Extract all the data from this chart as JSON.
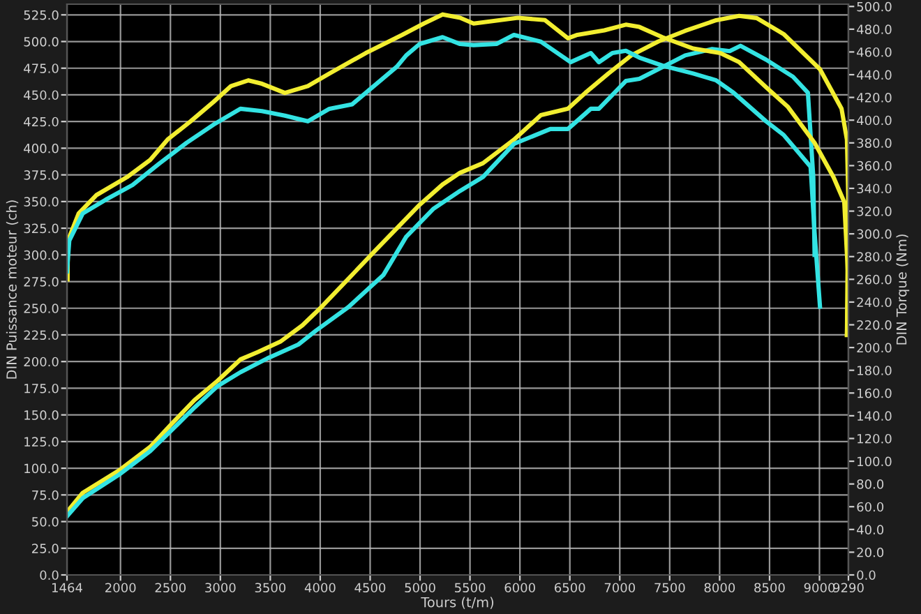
{
  "chart_data": {
    "type": "line",
    "xlabel": "Tours (t/m)",
    "ylabel": "DIN Puissance moteur (ch)",
    "y2label": "DIN Torque (Nm)",
    "xlim": [
      1464,
      9290
    ],
    "ylim": [
      0,
      535
    ],
    "y2lim": [
      0,
      502
    ],
    "grid": true,
    "legend": false,
    "marker": "none",
    "line_style": "solid",
    "xticks": [
      1464,
      2000,
      2500,
      3000,
      3500,
      4000,
      4500,
      5000,
      5500,
      6000,
      6500,
      7000,
      7500,
      8000,
      8500,
      9000,
      9290
    ],
    "yticks": [
      {
        "value": 0,
        "label": "0.0"
      },
      {
        "value": 25,
        "label": "25.0"
      },
      {
        "value": 50,
        "label": "50.0"
      },
      {
        "value": 75,
        "label": "75.0"
      },
      {
        "value": 100,
        "label": "100.0"
      },
      {
        "value": 125,
        "label": "125.0"
      },
      {
        "value": 150,
        "label": "150.0"
      },
      {
        "value": 175,
        "label": "175.0"
      },
      {
        "value": 200,
        "label": "200.0"
      },
      {
        "value": 225,
        "label": "225.0"
      },
      {
        "value": 250,
        "label": "250.0"
      },
      {
        "value": 275,
        "label": "275.0"
      },
      {
        "value": 300,
        "label": "300.0"
      },
      {
        "value": 325,
        "label": "325.0"
      },
      {
        "value": 350,
        "label": "350.0"
      },
      {
        "value": 375,
        "label": "375.0"
      },
      {
        "value": 400,
        "label": "400.0"
      },
      {
        "value": 425,
        "label": "425.0"
      },
      {
        "value": 450,
        "label": "450.0"
      },
      {
        "value": 475,
        "label": "475.0"
      },
      {
        "value": 500,
        "label": "500.0"
      },
      {
        "value": 525,
        "label": "525.0"
      }
    ],
    "y2ticks": [
      {
        "value": 0,
        "label": "0.0"
      },
      {
        "value": 20,
        "label": "20.0"
      },
      {
        "value": 40,
        "label": "40.0"
      },
      {
        "value": 60,
        "label": "60.0"
      },
      {
        "value": 80,
        "label": "80.0"
      },
      {
        "value": 100,
        "label": "100.0"
      },
      {
        "value": 120,
        "label": "120.0"
      },
      {
        "value": 140,
        "label": "140.0"
      },
      {
        "value": 160,
        "label": "160.0"
      },
      {
        "value": 180,
        "label": "180.0"
      },
      {
        "value": 200,
        "label": "200.0"
      },
      {
        "value": 220,
        "label": "220.0"
      },
      {
        "value": 240,
        "label": "240.0"
      },
      {
        "value": 260,
        "label": "260.0"
      },
      {
        "value": 280,
        "label": "280.0"
      },
      {
        "value": 300,
        "label": "300.0"
      },
      {
        "value": 320,
        "label": "320.0"
      },
      {
        "value": 340,
        "label": "340.0"
      },
      {
        "value": 360,
        "label": "360.0"
      },
      {
        "value": 380,
        "label": "380.0"
      },
      {
        "value": 400,
        "label": "400.0"
      },
      {
        "value": 420,
        "label": "420.0"
      },
      {
        "value": 440,
        "label": "440.0"
      },
      {
        "value": 460,
        "label": "460.0"
      },
      {
        "value": 480,
        "label": "480.0"
      },
      {
        "value": 500,
        "label": "500.0"
      }
    ],
    "series": [
      {
        "color": "#f2ee30",
        "axis": "y2",
        "x": [
          1470,
          1473,
          1581,
          1757,
          2067,
          2297,
          2472,
          2702,
          2931,
          3107,
          3282,
          3417,
          3646,
          3876,
          4092,
          4456,
          4821,
          5037,
          5226,
          5401,
          5536,
          5981,
          6251,
          6481,
          6575,
          6845,
          7061,
          7196,
          7426,
          7736,
          8006,
          8195,
          8465,
          8681,
          8951,
          9140,
          9248,
          9288,
          9275
        ],
        "values": [
          260,
          294,
          318,
          334,
          350,
          365,
          383,
          399,
          416,
          430,
          435,
          432,
          424,
          430,
          441,
          459,
          475,
          485,
          493,
          490,
          485,
          490,
          488,
          472,
          475,
          479,
          484,
          482,
          473,
          463,
          459,
          451,
          429,
          412,
          380,
          350,
          328,
          260,
          211
        ]
      },
      {
        "color": "#33e3e3",
        "axis": "y2",
        "x": [
          1464,
          1487,
          1622,
          1851,
          2121,
          2391,
          2661,
          2931,
          3201,
          3417,
          3646,
          3876,
          4092,
          4321,
          4456,
          4767,
          4861,
          4996,
          5226,
          5401,
          5536,
          5765,
          5940,
          6210,
          6507,
          6710,
          6791,
          6926,
          7061,
          7196,
          7426,
          7736,
          7966,
          8141,
          8465,
          8641,
          8911,
          8951,
          9005
        ],
        "values": [
          267,
          294,
          318,
          330,
          343,
          362,
          380,
          396,
          410,
          408,
          404,
          399,
          410,
          414,
          424,
          447,
          457,
          467,
          473,
          467,
          466,
          467,
          475,
          469,
          451,
          459,
          451,
          459,
          461,
          455,
          448,
          441,
          435,
          424,
          399,
          387,
          359,
          301,
          236
        ]
      },
      {
        "color": "#f2ee30",
        "x": [
          1464,
          1622,
          1986,
          2297,
          2526,
          2742,
          2972,
          3201,
          3376,
          3606,
          3822,
          4011,
          4551,
          4996,
          5226,
          5401,
          5630,
          5940,
          6210,
          6481,
          6656,
          6886,
          7115,
          7385,
          7655,
          7966,
          8195,
          8371,
          8641,
          9005,
          9221,
          9275,
          9288,
          9275
        ],
        "values": [
          59,
          77,
          98,
          120,
          143,
          164,
          182,
          202,
          209,
          219,
          234,
          251,
          304,
          347,
          366,
          377,
          386,
          408,
          431,
          437,
          452,
          470,
          487,
          500,
          510,
          520,
          524,
          522,
          507,
          474,
          437,
          408,
          356,
          225
        ]
      },
      {
        "color": "#33e3e3",
        "x": [
          1464,
          1622,
          1986,
          2297,
          2526,
          2742,
          2972,
          3201,
          3471,
          3781,
          3957,
          4281,
          4632,
          4861,
          5131,
          5401,
          5630,
          5940,
          6305,
          6481,
          6710,
          6791,
          7061,
          7196,
          7385,
          7655,
          7925,
          8101,
          8209,
          8465,
          8735,
          8884,
          8938,
          8951
        ],
        "values": [
          55,
          72,
          94,
          116,
          137,
          157,
          177,
          190,
          203,
          216,
          229,
          251,
          281,
          317,
          343,
          360,
          373,
          404,
          418,
          418,
          437,
          437,
          463,
          465,
          474,
          487,
          493,
          491,
          496,
          483,
          467,
          452,
          373,
          300
        ]
      }
    ]
  }
}
